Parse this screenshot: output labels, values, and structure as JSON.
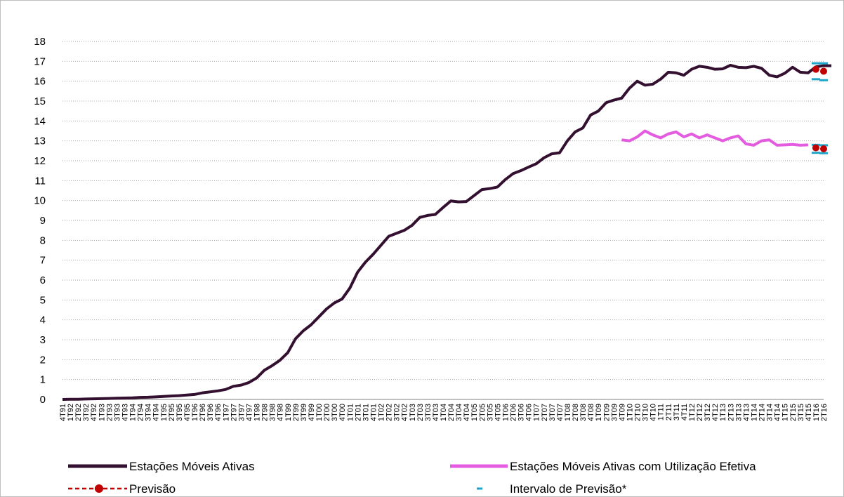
{
  "chart_data": {
    "type": "line",
    "ylim": [
      0,
      18
    ],
    "yticks": [
      "0",
      "1",
      "2",
      "3",
      "4",
      "5",
      "6",
      "7",
      "8",
      "9",
      "10",
      "11",
      "12",
      "13",
      "14",
      "15",
      "16",
      "17",
      "18"
    ],
    "grid": "horizontal dotted",
    "legend_position": "bottom",
    "x_labels": [
      "4T91",
      "1T92",
      "2T92",
      "3T92",
      "4T92",
      "1T93",
      "2T93",
      "3T93",
      "4T93",
      "1T94",
      "2T94",
      "3T94",
      "4T94",
      "1T95",
      "2T95",
      "3T95",
      "4T95",
      "1T96",
      "2T96",
      "3T96",
      "4T96",
      "1T97",
      "2T97",
      "3T97",
      "4T97",
      "1T98",
      "2T98",
      "3T98",
      "4T98",
      "1T99",
      "2T99",
      "3T99",
      "4T99",
      "1T00",
      "2T00",
      "3T00",
      "4T00",
      "1T01",
      "2T01",
      "3T01",
      "4T01",
      "1T02",
      "2T02",
      "3T02",
      "4T02",
      "1T03",
      "2T03",
      "3T03",
      "4T03",
      "1T04",
      "2T04",
      "3T04",
      "4T04",
      "1T05",
      "2T05",
      "3T05",
      "4T05",
      "1T06",
      "2T06",
      "3T06",
      "4T06",
      "1T07",
      "2T07",
      "3T07",
      "4T07",
      "1T08",
      "2T08",
      "3T08",
      "4T08",
      "1T09",
      "2T09",
      "3T09",
      "4T09",
      "1T10",
      "2T10",
      "3T10",
      "4T10",
      "1T11",
      "2T11",
      "3T11",
      "4T11",
      "1T12",
      "2T12",
      "3T12",
      "4T12",
      "1T13",
      "2T13",
      "3T13",
      "4T13",
      "1T14",
      "2T14",
      "3T14",
      "4T14",
      "1T15",
      "2T15",
      "3T15",
      "4T15",
      "1T16",
      "2T16"
    ],
    "series": [
      {
        "name": "Estações Móveis Ativas",
        "color": "#33102f",
        "start_index": 0,
        "values": [
          0.0,
          0.01,
          0.01,
          0.02,
          0.03,
          0.04,
          0.05,
          0.06,
          0.07,
          0.08,
          0.1,
          0.11,
          0.13,
          0.15,
          0.17,
          0.19,
          0.22,
          0.25,
          0.33,
          0.38,
          0.43,
          0.5,
          0.66,
          0.72,
          0.85,
          1.08,
          1.47,
          1.7,
          1.97,
          2.35,
          3.05,
          3.45,
          3.75,
          4.15,
          4.55,
          4.85,
          5.05,
          5.6,
          6.4,
          6.9,
          7.3,
          7.75,
          8.2,
          8.35,
          8.5,
          8.75,
          9.15,
          9.25,
          9.3,
          9.65,
          9.98,
          9.93,
          9.95,
          10.25,
          10.55,
          10.6,
          10.68,
          11.05,
          11.35,
          11.5,
          11.68,
          11.85,
          12.15,
          12.35,
          12.4,
          13.0,
          13.45,
          13.65,
          14.3,
          14.5,
          14.92,
          15.05,
          15.15,
          15.65,
          16.0,
          15.8,
          15.85,
          16.1,
          16.45,
          16.42,
          16.3,
          16.6,
          16.75,
          16.7,
          16.6,
          16.62,
          16.8,
          16.7,
          16.68,
          16.75,
          16.65,
          16.3,
          16.22,
          16.4,
          16.7,
          16.45,
          16.42,
          16.72,
          16.78,
          16.78
        ]
      },
      {
        "name": "Estações Móveis Ativas com Utilização Efetiva",
        "color": "#e35ce0",
        "start_index": 72,
        "values": [
          13.05,
          13.0,
          13.2,
          13.5,
          13.3,
          13.15,
          13.35,
          13.45,
          13.2,
          13.35,
          13.15,
          13.3,
          13.15,
          13.0,
          13.15,
          13.25,
          12.85,
          12.78,
          13.0,
          13.05,
          12.78,
          12.8,
          12.82,
          12.78,
          12.8
        ]
      }
    ],
    "forecast": {
      "name": "Previsão",
      "color": "#c00000",
      "points": [
        {
          "x": "1T16",
          "y": 16.6
        },
        {
          "x": "2T16",
          "y": 16.5
        },
        {
          "x": "1T16",
          "y": 12.65
        },
        {
          "x": "2T16",
          "y": 12.6
        }
      ]
    },
    "forecast_interval": {
      "name": "Intervalo de Previsão*",
      "color": "#1ea5c8",
      "points": [
        {
          "x": "1T16",
          "y": 16.9
        },
        {
          "x": "2T16",
          "y": 16.9
        },
        {
          "x": "1T16",
          "y": 16.1
        },
        {
          "x": "2T16",
          "y": 16.05
        },
        {
          "x": "1T16",
          "y": 12.8
        },
        {
          "x": "2T16",
          "y": 12.78
        },
        {
          "x": "1T16",
          "y": 12.4
        },
        {
          "x": "2T16",
          "y": 12.38
        }
      ]
    }
  },
  "legend": {
    "series1": "Estações Móveis Ativas",
    "series2": "Estações Móveis Ativas com Utilização Efetiva",
    "forecast": "Previsão",
    "interval": "Intervalo de Previsão*"
  }
}
